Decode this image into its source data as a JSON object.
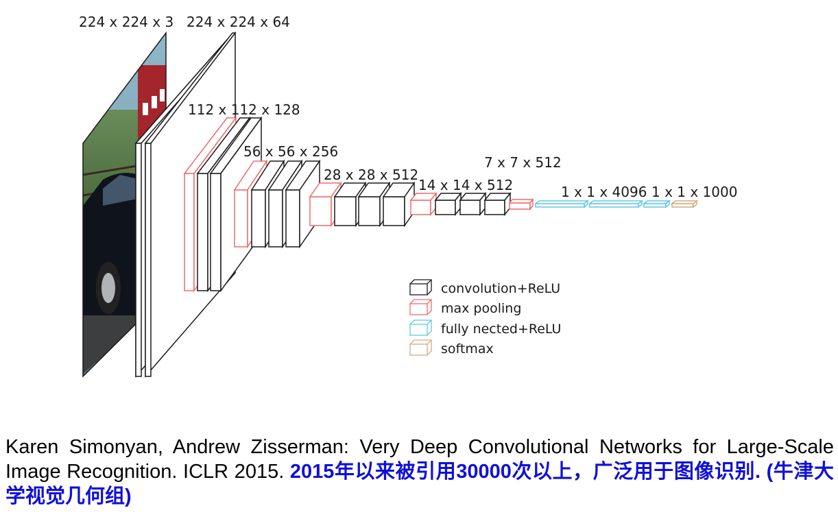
{
  "diagram": {
    "colors": {
      "conv": "#1a1a1a",
      "pool": "#f06a6a",
      "fc": "#5ec8e8",
      "softmax": "#d4aa7e"
    },
    "image_icon": "car-photo",
    "labels": [
      "224 x 224 x 3",
      "224 x 224 x 64",
      "112 x 112 x 128",
      "56 x 56 x 256",
      "28 x 28 x 512",
      "14 x 14 x 512",
      "7 x 7 x 512",
      "1 x 1 x 4096",
      "1 x 1 x 1000"
    ],
    "legend": [
      {
        "type": "conv",
        "label": "convolution+ReLU"
      },
      {
        "type": "pool",
        "label": "max pooling"
      },
      {
        "type": "fc",
        "label": "fully nected+ReLU"
      },
      {
        "type": "softmax",
        "label": "softmax"
      }
    ]
  },
  "caption": {
    "text": "Karen Simonyan, Andrew Zisserman: Very Deep Convolutional Networks for Large-Scale Image Recognition. ICLR 2015.",
    "highlight": "2015年以来被引用30000次以上，广泛用于图像识别. (牛津大学视觉几何组)"
  }
}
